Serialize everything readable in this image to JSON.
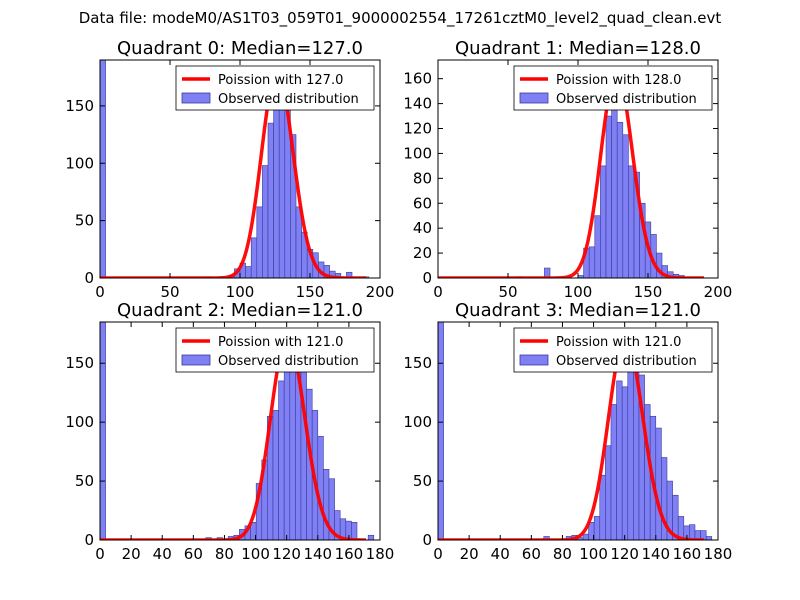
{
  "suptitle": "Data file: modeM0/AS1T03_059T01_9000002554_17261cztM0_level2_quad_clean.evt",
  "colors": {
    "bar_fill": "#8080f5",
    "bar_edge": "#3a3a9a",
    "poisson": "#ff0000"
  },
  "chart_data": [
    {
      "type": "bar",
      "title": "Quadrant 0: Median=127.0",
      "xlim": [
        0,
        200
      ],
      "ylim": [
        0,
        190
      ],
      "xticks": [
        "0",
        "50",
        "100",
        "150",
        "200"
      ],
      "xtick_values": [
        0,
        50,
        100,
        150,
        200
      ],
      "yticks": [
        "0",
        "50",
        "100",
        "150"
      ],
      "ytick_values": [
        0,
        50,
        100,
        150
      ],
      "legend": {
        "poisson_label": "Poission with 127.0",
        "observed_label": "Observed distribution",
        "position": "top-right"
      },
      "poisson": {
        "mean": 127,
        "peak": 180
      },
      "bin_width": 4,
      "bins": [
        [
          0,
          190
        ],
        [
          76,
          1
        ],
        [
          92,
          2
        ],
        [
          96,
          8
        ],
        [
          100,
          13
        ],
        [
          104,
          10
        ],
        [
          108,
          35
        ],
        [
          112,
          62
        ],
        [
          116,
          98
        ],
        [
          120,
          135
        ],
        [
          124,
          170
        ],
        [
          128,
          160
        ],
        [
          132,
          148
        ],
        [
          136,
          125
        ],
        [
          140,
          62
        ],
        [
          144,
          40
        ],
        [
          148,
          25
        ],
        [
          152,
          22
        ],
        [
          156,
          14
        ],
        [
          160,
          11
        ],
        [
          164,
          6
        ],
        [
          168,
          4
        ],
        [
          176,
          5
        ],
        [
          188,
          1
        ]
      ]
    },
    {
      "type": "bar",
      "title": "Quadrant 1: Median=128.0",
      "xlim": [
        0,
        200
      ],
      "ylim": [
        0,
        175
      ],
      "xticks": [
        "0",
        "50",
        "100",
        "150",
        "200"
      ],
      "xtick_values": [
        0,
        50,
        100,
        150,
        200
      ],
      "yticks": [
        "0",
        "20",
        "40",
        "60",
        "80",
        "100",
        "120",
        "140",
        "160"
      ],
      "ytick_values": [
        0,
        20,
        40,
        60,
        80,
        100,
        120,
        140,
        160
      ],
      "legend": {
        "poisson_label": "Poission with 128.0",
        "observed_label": "Observed distribution",
        "position": "top-right"
      },
      "poisson": {
        "mean": 128,
        "peak": 165
      },
      "bin_width": 4,
      "bins": [
        [
          56,
          1
        ],
        [
          76,
          8
        ],
        [
          100,
          2
        ],
        [
          104,
          24
        ],
        [
          108,
          25
        ],
        [
          112,
          50
        ],
        [
          116,
          90
        ],
        [
          120,
          130
        ],
        [
          124,
          150
        ],
        [
          128,
          125
        ],
        [
          132,
          115
        ],
        [
          136,
          90
        ],
        [
          140,
          85
        ],
        [
          144,
          60
        ],
        [
          148,
          45
        ],
        [
          152,
          35
        ],
        [
          156,
          20
        ],
        [
          160,
          10
        ],
        [
          164,
          5
        ],
        [
          168,
          3
        ],
        [
          172,
          2
        ]
      ]
    },
    {
      "type": "bar",
      "title": "Quadrant 2: Median=121.0",
      "xlim": [
        0,
        180
      ],
      "ylim": [
        0,
        185
      ],
      "xticks": [
        "0",
        "20",
        "40",
        "60",
        "80",
        "100",
        "120",
        "140",
        "160",
        "180"
      ],
      "xtick_values": [
        0,
        20,
        40,
        60,
        80,
        100,
        120,
        140,
        160,
        180
      ],
      "yticks": [
        "0",
        "50",
        "100",
        "150"
      ],
      "ytick_values": [
        0,
        50,
        100,
        150
      ],
      "legend": {
        "poisson_label": "Poission with 121.0",
        "observed_label": "Observed distribution",
        "position": "top-right"
      },
      "poisson": {
        "mean": 121,
        "peak": 172
      },
      "bin_width": 3.6,
      "bins": [
        [
          0,
          185
        ],
        [
          68,
          2
        ],
        [
          75.2,
          2
        ],
        [
          82.4,
          3
        ],
        [
          86,
          4
        ],
        [
          89.6,
          9
        ],
        [
          93.2,
          12
        ],
        [
          96.8,
          15
        ],
        [
          100.4,
          48
        ],
        [
          104,
          68
        ],
        [
          107.6,
          105
        ],
        [
          111.2,
          110
        ],
        [
          114.8,
          135
        ],
        [
          118.4,
          145
        ],
        [
          122,
          162
        ],
        [
          125.6,
          155
        ],
        [
          129.2,
          148
        ],
        [
          132.8,
          128
        ],
        [
          136.4,
          110
        ],
        [
          140,
          88
        ],
        [
          143.6,
          60
        ],
        [
          147.2,
          52
        ],
        [
          150.8,
          25
        ],
        [
          154.4,
          18
        ],
        [
          158,
          16
        ],
        [
          161.6,
          15
        ],
        [
          172.4,
          4
        ]
      ]
    },
    {
      "type": "bar",
      "title": "Quadrant 3: Median=121.0",
      "xlim": [
        0,
        180
      ],
      "ylim": [
        0,
        185
      ],
      "xticks": [
        "0",
        "20",
        "40",
        "60",
        "80",
        "100",
        "120",
        "140",
        "160",
        "180"
      ],
      "xtick_values": [
        0,
        20,
        40,
        60,
        80,
        100,
        120,
        140,
        160,
        180
      ],
      "yticks": [
        "0",
        "50",
        "100",
        "150"
      ],
      "ytick_values": [
        0,
        50,
        100,
        150
      ],
      "legend": {
        "poisson_label": "Poission with 121.0",
        "observed_label": "Observed distribution",
        "position": "top-right"
      },
      "poisson": {
        "mean": 121,
        "peak": 172
      },
      "bin_width": 3.6,
      "bins": [
        [
          0,
          185
        ],
        [
          68,
          3
        ],
        [
          82.4,
          3
        ],
        [
          86,
          4
        ],
        [
          89.6,
          2
        ],
        [
          93.2,
          5
        ],
        [
          96.8,
          15
        ],
        [
          100.4,
          20
        ],
        [
          104,
          55
        ],
        [
          107.6,
          80
        ],
        [
          111.2,
          115
        ],
        [
          114.8,
          135
        ],
        [
          118.4,
          130
        ],
        [
          122,
          150
        ],
        [
          125.6,
          148
        ],
        [
          129.2,
          140
        ],
        [
          132.8,
          115
        ],
        [
          136.4,
          105
        ],
        [
          140,
          95
        ],
        [
          143.6,
          70
        ],
        [
          147.2,
          50
        ],
        [
          150.8,
          38
        ],
        [
          154.4,
          20
        ],
        [
          158,
          12
        ],
        [
          161.6,
          13
        ],
        [
          165.2,
          8
        ],
        [
          168.8,
          8
        ],
        [
          172.4,
          3
        ]
      ]
    }
  ]
}
